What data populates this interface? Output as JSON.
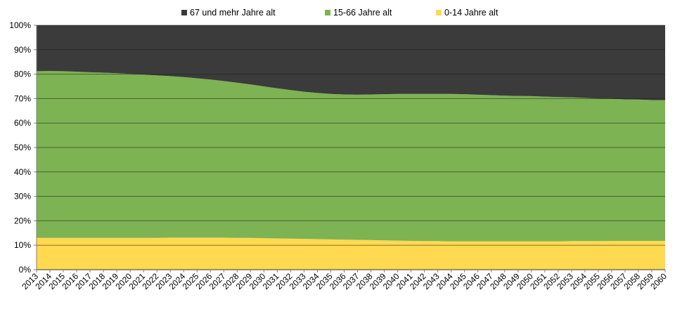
{
  "chart_data": {
    "type": "area",
    "stacked": true,
    "percent": true,
    "title": "",
    "xlabel": "",
    "ylabel": "",
    "ylim": [
      0,
      100
    ],
    "y_ticks": [
      "0%",
      "10%",
      "20%",
      "30%",
      "40%",
      "50%",
      "60%",
      "70%",
      "80%",
      "90%",
      "100%"
    ],
    "grid": true,
    "legend_position": "top-center",
    "x": [
      "2013",
      "2014",
      "2015",
      "2016",
      "2017",
      "2018",
      "2019",
      "2020",
      "2021",
      "2022",
      "2023",
      "2024",
      "2025",
      "2026",
      "2027",
      "2028",
      "2029",
      "2030",
      "2031",
      "2032",
      "2033",
      "2034",
      "2035",
      "2036",
      "2037",
      "2038",
      "2039",
      "2040",
      "2041",
      "2042",
      "2043",
      "2044",
      "2045",
      "2046",
      "2047",
      "2048",
      "2049",
      "2050",
      "2051",
      "2052",
      "2053",
      "2054",
      "2055",
      "2056",
      "2057",
      "2058",
      "2059",
      "2060"
    ],
    "series": [
      {
        "name": "0-14 Jahre alt",
        "color": "#ffd94f",
        "values": [
          13.0,
          13.0,
          13.0,
          13.0,
          13.0,
          13.0,
          13.0,
          13.0,
          13.0,
          13.0,
          13.1,
          13.1,
          13.1,
          13.1,
          13.1,
          13.0,
          13.0,
          12.9,
          12.8,
          12.7,
          12.6,
          12.5,
          12.4,
          12.3,
          12.2,
          12.1,
          12.0,
          11.9,
          11.8,
          11.7,
          11.7,
          11.6,
          11.6,
          11.6,
          11.6,
          11.6,
          11.6,
          11.6,
          11.6,
          11.6,
          11.7,
          11.7,
          11.7,
          11.8,
          11.8,
          11.8,
          11.8,
          11.8
        ]
      },
      {
        "name": "15-66 Jahre alt",
        "color": "#7db352",
        "values": [
          68.2,
          68.3,
          68.2,
          68.0,
          67.8,
          67.6,
          67.4,
          67.1,
          66.8,
          66.5,
          66.1,
          65.7,
          65.2,
          64.7,
          64.1,
          63.5,
          62.8,
          62.1,
          61.4,
          60.8,
          60.2,
          59.8,
          59.5,
          59.4,
          59.4,
          59.6,
          59.8,
          60.0,
          60.1,
          60.2,
          60.2,
          60.3,
          60.2,
          60.0,
          59.8,
          59.6,
          59.5,
          59.4,
          59.2,
          59.0,
          58.8,
          58.6,
          58.3,
          58.1,
          57.9,
          57.8,
          57.6,
          57.6
        ]
      },
      {
        "name": "67 und mehr Jahre alt",
        "color": "#3b3b3b",
        "values": [
          18.8,
          18.7,
          18.8,
          19.0,
          19.2,
          19.4,
          19.6,
          19.9,
          20.2,
          20.5,
          20.8,
          21.2,
          21.7,
          22.2,
          22.8,
          23.5,
          24.2,
          25.0,
          25.8,
          26.5,
          27.2,
          27.7,
          28.1,
          28.3,
          28.4,
          28.3,
          28.2,
          28.1,
          28.1,
          28.1,
          28.1,
          28.1,
          28.2,
          28.4,
          28.6,
          28.8,
          28.9,
          29.0,
          29.2,
          29.4,
          29.5,
          29.7,
          30.0,
          30.1,
          30.3,
          30.4,
          30.6,
          30.6
        ]
      }
    ],
    "legend": [
      {
        "label": "67 und mehr Jahre alt",
        "color": "#3b3b3b"
      },
      {
        "label": "15-66 Jahre alt",
        "color": "#7db352"
      },
      {
        "label": "0-14 Jahre alt",
        "color": "#ffd94f"
      }
    ]
  }
}
